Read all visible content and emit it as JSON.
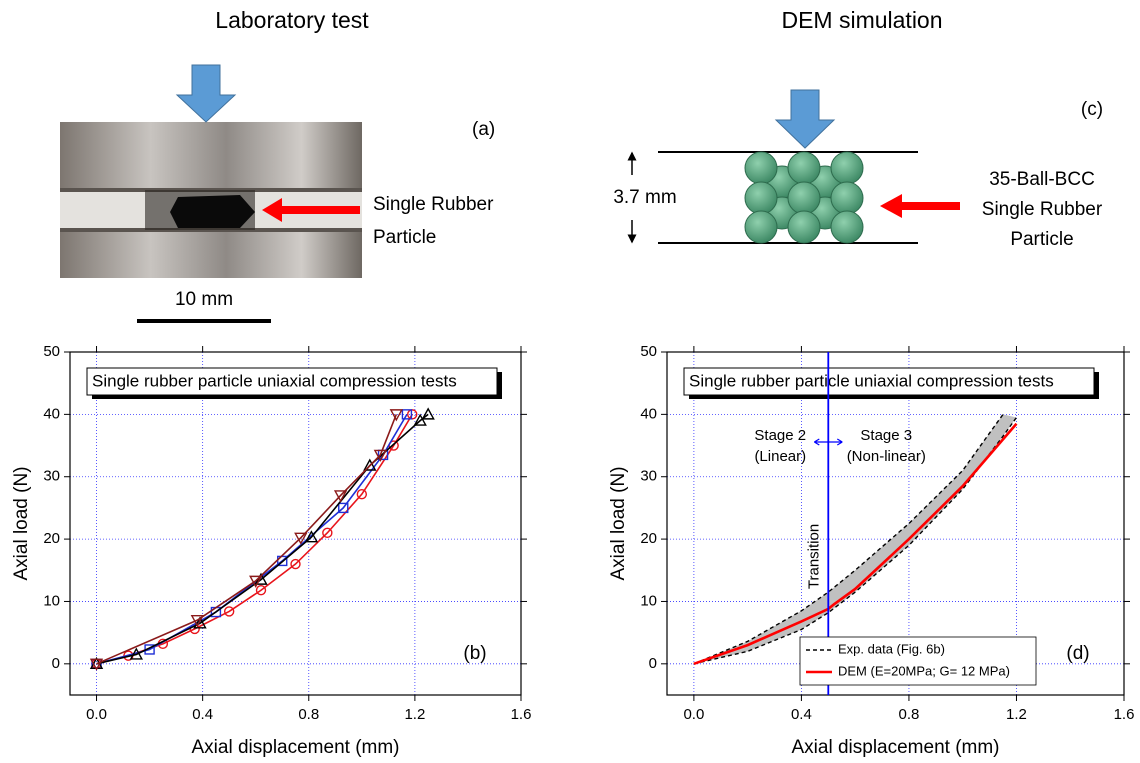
{
  "panels": {
    "lab_title": "Laboratory test",
    "dem_title": "DEM simulation",
    "a_label": "(a)",
    "c_label": "(c)",
    "lab_annotation": [
      "Single Rubber",
      "Particle"
    ],
    "scale_bar": "10 mm",
    "height": "3.7 mm",
    "dem_annotation": [
      "35-Ball-BCC",
      "Single Rubber",
      "Particle"
    ]
  },
  "chart_data": [
    {
      "type": "line",
      "xlabel": "Axial displacement (mm)",
      "ylabel": "Axial load (N)",
      "xlim": [
        -0.1,
        1.6
      ],
      "ylim": [
        -5,
        50
      ],
      "xticks": [
        {
          "value": 0,
          "label": "0.0"
        },
        0.4,
        0.8,
        1.2,
        1.6
      ],
      "yticks": [
        0,
        10,
        20,
        30,
        40,
        50
      ],
      "grid": true,
      "box_text": "Single rubber particle uniaxial compression tests",
      "panel_label": "(b)",
      "series": [
        {
          "color": "#e8141b",
          "marker": "circle",
          "x": [
            0,
            0.12,
            0.25,
            0.37,
            0.5,
            0.62,
            0.75,
            0.87,
            1.0,
            1.12,
            1.19
          ],
          "values": [
            0,
            1.3,
            3.2,
            5.6,
            8.4,
            11.8,
            16,
            21,
            27.2,
            35,
            40
          ]
        },
        {
          "color": "#1f2fd6",
          "marker": "square",
          "x": [
            0,
            0.2,
            0.45,
            0.7,
            0.93,
            1.08,
            1.17
          ],
          "values": [
            0,
            2.3,
            8.3,
            16.5,
            25,
            33.5,
            40
          ]
        },
        {
          "color": "#000000",
          "marker": "triangle-up",
          "x": [
            0,
            0.15,
            0.39,
            0.62,
            0.81,
            1.03,
            1.22,
            1.25
          ],
          "values": [
            0,
            1.5,
            6.5,
            13.5,
            20.3,
            31.8,
            39,
            40
          ]
        },
        {
          "color": "#8b1a1a",
          "marker": "triangle-down",
          "x": [
            0,
            0.38,
            0.6,
            0.77,
            0.92,
            1.07,
            1.13
          ],
          "values": [
            0,
            7,
            13.3,
            20.2,
            27,
            33.5,
            40
          ]
        }
      ]
    },
    {
      "type": "line",
      "xlabel": "Axial displacement (mm)",
      "ylabel": "Axial load (N)",
      "xlim": [
        -0.1,
        1.6
      ],
      "ylim": [
        -5,
        50
      ],
      "xticks": [
        {
          "value": 0,
          "label": "0.0"
        },
        0.4,
        0.8,
        1.2,
        1.6
      ],
      "yticks": [
        0,
        10,
        20,
        30,
        40,
        50
      ],
      "grid": true,
      "legend": "lower right",
      "box_text": "Single rubber particle uniaxial compression tests",
      "panel_label": "(d)",
      "transition": 0.5,
      "transition_label": "Transition",
      "stage_left": [
        "Stage 2",
        "(Linear)"
      ],
      "stage_right": [
        "Stage 3",
        "(Non-linear)"
      ],
      "series": [
        {
          "name": "Exp. data (Fig. 6b)",
          "color": "#000000",
          "dash": true,
          "band_color": "#c0c0c0",
          "x": [
            0,
            0.2,
            0.4,
            0.5,
            0.6,
            0.8,
            1.0,
            1.15,
            1.2
          ],
          "values": [
            0,
            3.6,
            8.5,
            11.5,
            15,
            22.5,
            31,
            40,
            null
          ],
          "lower": [
            0,
            2,
            5.5,
            8.2,
            11.5,
            19,
            28,
            36.5,
            39.5
          ]
        },
        {
          "name": "DEM (E=20MPa; G= 12 MPa)",
          "color": "#ff0000",
          "x": [
            0,
            0.2,
            0.4,
            0.5,
            0.52,
            0.6,
            0.8,
            1.0,
            1.2
          ],
          "values": [
            0,
            3,
            6.8,
            8.8,
            9.5,
            12,
            20,
            28.5,
            38.5
          ]
        }
      ]
    }
  ]
}
